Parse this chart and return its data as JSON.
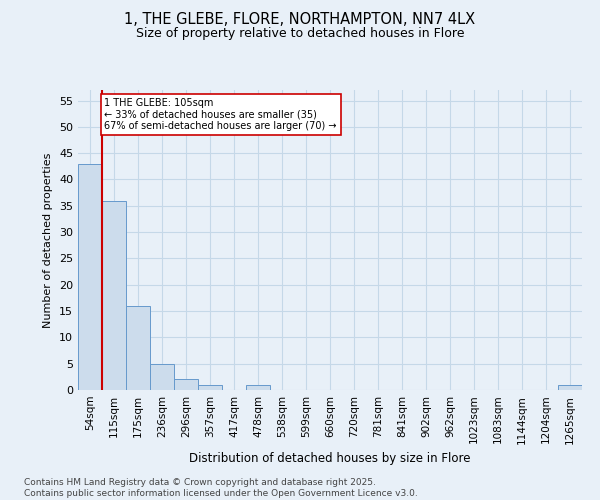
{
  "title1": "1, THE GLEBE, FLORE, NORTHAMPTON, NN7 4LX",
  "title2": "Size of property relative to detached houses in Flore",
  "xlabel": "Distribution of detached houses by size in Flore",
  "ylabel": "Number of detached properties",
  "bar_labels": [
    "54sqm",
    "115sqm",
    "175sqm",
    "236sqm",
    "296sqm",
    "357sqm",
    "417sqm",
    "478sqm",
    "538sqm",
    "599sqm",
    "660sqm",
    "720sqm",
    "781sqm",
    "841sqm",
    "902sqm",
    "962sqm",
    "1023sqm",
    "1083sqm",
    "1144sqm",
    "1204sqm",
    "1265sqm"
  ],
  "bar_values": [
    43,
    36,
    16,
    5,
    2,
    1,
    0,
    1,
    0,
    0,
    0,
    0,
    0,
    0,
    0,
    0,
    0,
    0,
    0,
    0,
    1
  ],
  "bar_color": "#ccdcec",
  "bar_edge_color": "#6699cc",
  "bar_width": 1.0,
  "ylim": [
    0,
    57
  ],
  "yticks": [
    0,
    5,
    10,
    15,
    20,
    25,
    30,
    35,
    40,
    45,
    50,
    55
  ],
  "annotation_line1": "1 THE GLEBE: 105sqm",
  "annotation_line2": "← 33% of detached houses are smaller (35)",
  "annotation_line3": "67% of semi-detached houses are larger (70) →",
  "red_line_color": "#cc0000",
  "annotation_box_color": "#ffffff",
  "annotation_box_edge": "#cc0000",
  "grid_color": "#c5d8e8",
  "background_color": "#e8f0f8",
  "footer1": "Contains HM Land Registry data © Crown copyright and database right 2025.",
  "footer2": "Contains public sector information licensed under the Open Government Licence v3.0."
}
